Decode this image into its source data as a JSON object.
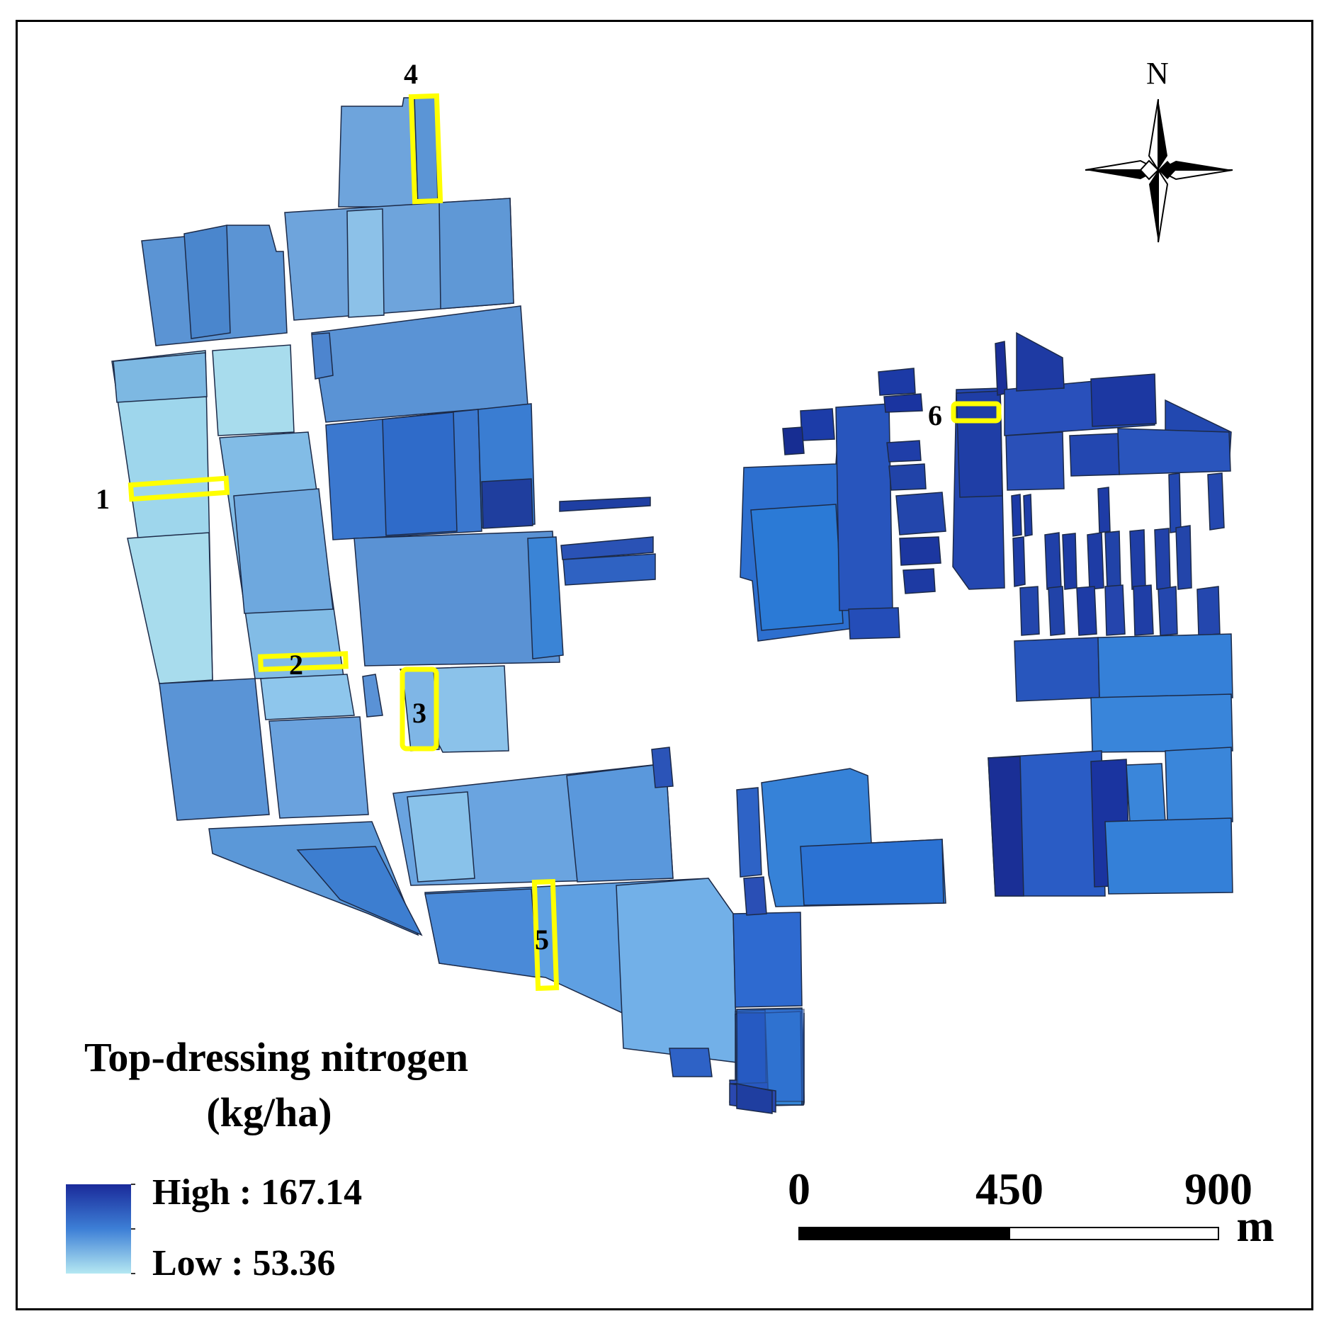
{
  "legend": {
    "title_line1": "Top-dressing nitrogen",
    "title_line2": "(kg/ha)",
    "high_label": "High : 167.14",
    "low_label": "Low : 53.36",
    "high_value": 167.14,
    "low_value": 53.36,
    "high_color": "#1a2a9a",
    "low_color": "#b5e8f2"
  },
  "north_arrow": {
    "label": "N"
  },
  "scale_bar": {
    "ticks": [
      "0",
      "450",
      "900"
    ],
    "unit": "m"
  },
  "sites": [
    "1",
    "2",
    "3",
    "4",
    "5",
    "6"
  ],
  "highlight_color": "#ffff00"
}
